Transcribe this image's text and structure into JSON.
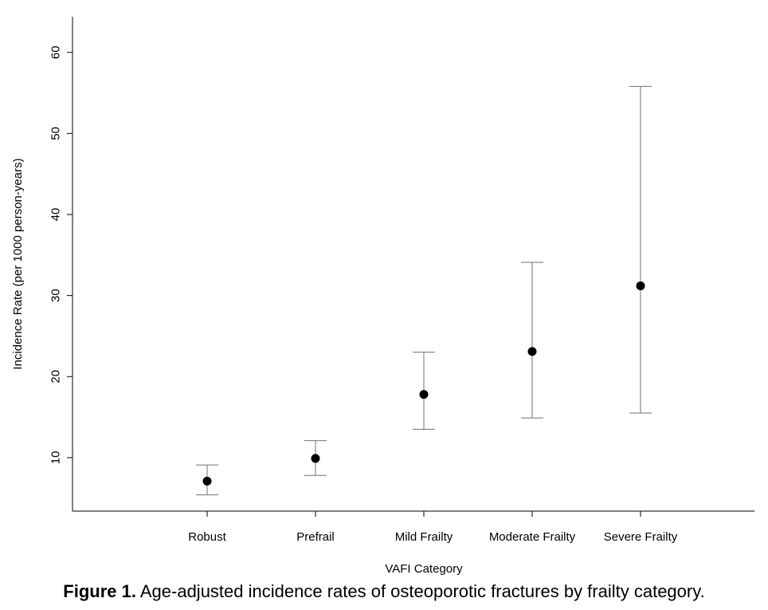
{
  "chart_data": {
    "type": "scatter",
    "subtype": "point-with-error-bars",
    "categories": [
      "Robust",
      "Prefrail",
      "Mild Frailty",
      "Moderate Frailty",
      "Severe Frailty"
    ],
    "values": [
      7.1,
      9.9,
      17.8,
      23.1,
      31.2
    ],
    "ci_lower": [
      5.4,
      7.8,
      13.5,
      14.9,
      15.5
    ],
    "ci_upper": [
      9.1,
      12.1,
      23.0,
      34.1,
      55.8
    ],
    "xlabel": "VAFI Category",
    "ylabel": "Incidence Rate (per 1000 person-years)",
    "yticks": [
      10,
      20,
      30,
      40,
      50,
      60
    ],
    "ylim": [
      3.4,
      64.4
    ],
    "grid": false,
    "legend": "none",
    "point_color": "#000000",
    "errorbar_color": "#707070"
  },
  "caption": {
    "label": "Figure 1.",
    "text": " Age-adjusted incidence rates of osteoporotic fractures by frailty category."
  }
}
